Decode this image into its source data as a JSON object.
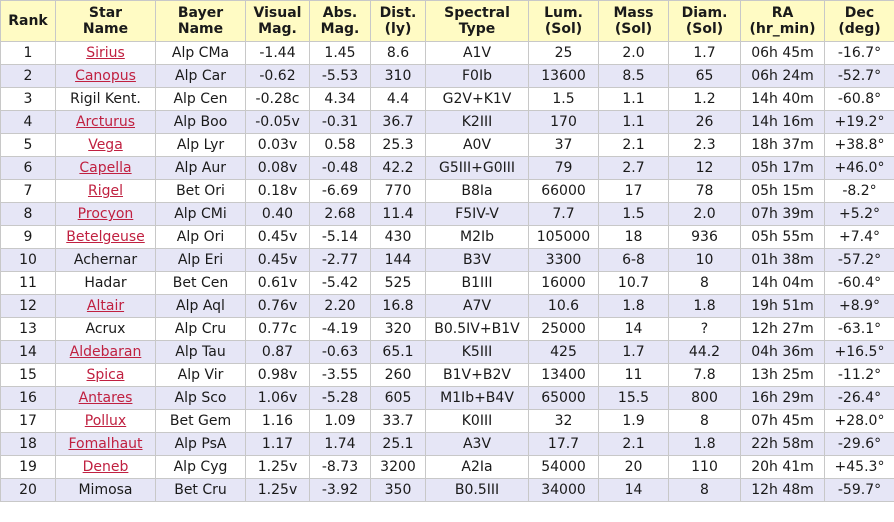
{
  "headers": [
    {
      "line1": "Rank",
      "line2": ""
    },
    {
      "line1": "Star",
      "line2": "Name"
    },
    {
      "line1": "Bayer",
      "line2": "Name"
    },
    {
      "line1": "Visual",
      "line2": "Mag."
    },
    {
      "line1": "Abs.",
      "line2": "Mag."
    },
    {
      "line1": "Dist.",
      "line2": "(ly)"
    },
    {
      "line1": "Spectral",
      "line2": "Type"
    },
    {
      "line1": "Lum.",
      "line2": "(Sol)"
    },
    {
      "line1": "Mass",
      "line2": "(Sol)"
    },
    {
      "line1": "Diam.",
      "line2": "(Sol)"
    },
    {
      "line1": "RA",
      "line2": "(hr_min)"
    },
    {
      "line1": "Dec",
      "line2": "(deg)"
    }
  ],
  "rows": [
    {
      "rank": "1",
      "name": "Sirius",
      "link": true,
      "bayer": "Alp CMa",
      "vmag": "-1.44",
      "amag": "1.45",
      "dist": "8.6",
      "spec": "A1V",
      "lum": "25",
      "mass": "2.0",
      "diam": "1.7",
      "ra": "06h 45m",
      "dec": "-16.7°"
    },
    {
      "rank": "2",
      "name": "Canopus",
      "link": true,
      "bayer": "Alp Car",
      "vmag": "-0.62",
      "amag": "-5.53",
      "dist": "310",
      "spec": "F0Ib",
      "lum": "13600",
      "mass": "8.5",
      "diam": "65",
      "ra": "06h 24m",
      "dec": "-52.7°"
    },
    {
      "rank": "3",
      "name": "Rigil Kent.",
      "link": false,
      "bayer": "Alp Cen",
      "vmag": "-0.28c",
      "amag": "4.34",
      "dist": "4.4",
      "spec": "G2V+K1V",
      "lum": "1.5",
      "mass": "1.1",
      "diam": "1.2",
      "ra": "14h 40m",
      "dec": "-60.8°"
    },
    {
      "rank": "4",
      "name": "Arcturus",
      "link": true,
      "bayer": "Alp Boo",
      "vmag": "-0.05v",
      "amag": "-0.31",
      "dist": "36.7",
      "spec": "K2III",
      "lum": "170",
      "mass": "1.1",
      "diam": "26",
      "ra": "14h 16m",
      "dec": "+19.2°"
    },
    {
      "rank": "5",
      "name": "Vega",
      "link": true,
      "bayer": "Alp Lyr",
      "vmag": "0.03v",
      "amag": "0.58",
      "dist": "25.3",
      "spec": "A0V",
      "lum": "37",
      "mass": "2.1",
      "diam": "2.3",
      "ra": "18h 37m",
      "dec": "+38.8°"
    },
    {
      "rank": "6",
      "name": "Capella",
      "link": true,
      "bayer": "Alp Aur",
      "vmag": "0.08v",
      "amag": "-0.48",
      "dist": "42.2",
      "spec": "G5III+G0III",
      "lum": "79",
      "mass": "2.7",
      "diam": "12",
      "ra": "05h 17m",
      "dec": "+46.0°"
    },
    {
      "rank": "7",
      "name": "Rigel",
      "link": true,
      "bayer": "Bet Ori",
      "vmag": "0.18v",
      "amag": "-6.69",
      "dist": "770",
      "spec": "B8Ia",
      "lum": "66000",
      "mass": "17",
      "diam": "78",
      "ra": "05h 15m",
      "dec": "-8.2°"
    },
    {
      "rank": "8",
      "name": "Procyon",
      "link": true,
      "bayer": "Alp CMi",
      "vmag": "0.40",
      "amag": "2.68",
      "dist": "11.4",
      "spec": "F5IV-V",
      "lum": "7.7",
      "mass": "1.5",
      "diam": "2.0",
      "ra": "07h 39m",
      "dec": "+5.2°"
    },
    {
      "rank": "9",
      "name": "Betelgeuse",
      "link": true,
      "bayer": "Alp Ori",
      "vmag": "0.45v",
      "amag": "-5.14",
      "dist": "430",
      "spec": "M2Ib",
      "lum": "105000",
      "mass": "18",
      "diam": "936",
      "ra": "05h 55m",
      "dec": "+7.4°"
    },
    {
      "rank": "10",
      "name": "Achernar",
      "link": false,
      "bayer": "Alp Eri",
      "vmag": "0.45v",
      "amag": "-2.77",
      "dist": "144",
      "spec": "B3V",
      "lum": "3300",
      "mass": "6-8",
      "diam": "10",
      "ra": "01h 38m",
      "dec": "-57.2°"
    },
    {
      "rank": "11",
      "name": "Hadar",
      "link": false,
      "bayer": "Bet Cen",
      "vmag": "0.61v",
      "amag": "-5.42",
      "dist": "525",
      "spec": "B1III",
      "lum": "16000",
      "mass": "10.7",
      "diam": "8",
      "ra": "14h 04m",
      "dec": "-60.4°"
    },
    {
      "rank": "12",
      "name": "Altair",
      "link": true,
      "bayer": "Alp Aql",
      "vmag": "0.76v",
      "amag": "2.20",
      "dist": "16.8",
      "spec": "A7V",
      "lum": "10.6",
      "mass": "1.8",
      "diam": "1.8",
      "ra": "19h 51m",
      "dec": "+8.9°"
    },
    {
      "rank": "13",
      "name": "Acrux",
      "link": false,
      "bayer": "Alp Cru",
      "vmag": "0.77c",
      "amag": "-4.19",
      "dist": "320",
      "spec": "B0.5IV+B1V",
      "lum": "25000",
      "mass": "14",
      "diam": "?",
      "ra": "12h 27m",
      "dec": "-63.1°"
    },
    {
      "rank": "14",
      "name": "Aldebaran",
      "link": true,
      "bayer": "Alp Tau",
      "vmag": "0.87",
      "amag": "-0.63",
      "dist": "65.1",
      "spec": "K5III",
      "lum": "425",
      "mass": "1.7",
      "diam": "44.2",
      "ra": "04h 36m",
      "dec": "+16.5°"
    },
    {
      "rank": "15",
      "name": "Spica",
      "link": true,
      "bayer": "Alp Vir",
      "vmag": "0.98v",
      "amag": "-3.55",
      "dist": "260",
      "spec": "B1V+B2V",
      "lum": "13400",
      "mass": "11",
      "diam": "7.8",
      "ra": "13h 25m",
      "dec": "-11.2°"
    },
    {
      "rank": "16",
      "name": "Antares",
      "link": true,
      "bayer": "Alp Sco",
      "vmag": "1.06v",
      "amag": "-5.28",
      "dist": "605",
      "spec": "M1Ib+B4V",
      "lum": "65000",
      "mass": "15.5",
      "diam": "800",
      "ra": "16h 29m",
      "dec": "-26.4°"
    },
    {
      "rank": "17",
      "name": "Pollux",
      "link": true,
      "bayer": "Bet Gem",
      "vmag": "1.16",
      "amag": "1.09",
      "dist": "33.7",
      "spec": "K0III",
      "lum": "32",
      "mass": "1.9",
      "diam": "8",
      "ra": "07h 45m",
      "dec": "+28.0°"
    },
    {
      "rank": "18",
      "name": "Fomalhaut",
      "link": true,
      "bayer": "Alp PsA",
      "vmag": "1.17",
      "amag": "1.74",
      "dist": "25.1",
      "spec": "A3V",
      "lum": "17.7",
      "mass": "2.1",
      "diam": "1.8",
      "ra": "22h 58m",
      "dec": "-29.6°"
    },
    {
      "rank": "19",
      "name": "Deneb",
      "link": true,
      "bayer": "Alp Cyg",
      "vmag": "1.25v",
      "amag": "-8.73",
      "dist": "3200",
      "spec": "A2Ia",
      "lum": "54000",
      "mass": "20",
      "diam": "110",
      "ra": "20h 41m",
      "dec": "+45.3°"
    },
    {
      "rank": "20",
      "name": "Mimosa",
      "link": false,
      "bayer": "Bet Cru",
      "vmag": "1.25v",
      "amag": "-3.92",
      "dist": "350",
      "spec": "B0.5III",
      "lum": "34000",
      "mass": "14",
      "diam": "8",
      "ra": "12h 48m",
      "dec": "-59.7°"
    }
  ]
}
